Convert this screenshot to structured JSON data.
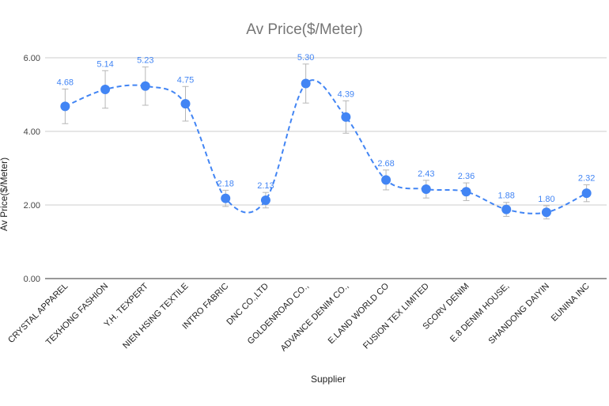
{
  "chart_data": {
    "type": "line",
    "title": "Av Price($/Meter)",
    "xlabel": "Supplier",
    "ylabel": "Av Price($/Meter)",
    "ylim": [
      0,
      6
    ],
    "yticks": [
      "0.00",
      "2.00",
      "4.00",
      "6.00"
    ],
    "grid": true,
    "smooth": true,
    "dashed": true,
    "color": "#4285f4",
    "error_bar_color": "#b7b7b7",
    "categories": [
      "CRYSTAL APPAREL",
      "TEXHONG FASHION",
      "Y.H. TEXPERT",
      "NIEN HSING TEXTILE",
      "INTRO FABRIC",
      "DNC CO.,LTD",
      "GOLDENROAD CO.,",
      "ADVANCE DENIM CO.,",
      "E.LAND WORLD CO",
      "FUSION TEX LIMITED",
      "SCORV DENIM",
      "E.8 DENIM HOUSE,",
      "SHANDONG DAIYIN",
      "EUNINA INC"
    ],
    "values": [
      4.68,
      5.14,
      5.23,
      4.75,
      2.18,
      2.13,
      5.3,
      4.39,
      2.68,
      2.43,
      2.36,
      1.88,
      1.8,
      2.32
    ],
    "data_labels": [
      "4.68",
      "5.14",
      "5.23",
      "4.75",
      "2.18",
      "2.13",
      "5.30",
      "4.39",
      "2.68",
      "2.43",
      "2.36",
      "1.88",
      "1.80",
      "2.32"
    ],
    "error_low": [
      4.21,
      4.63,
      4.71,
      4.28,
      1.96,
      1.92,
      4.77,
      3.95,
      2.41,
      2.19,
      2.12,
      1.69,
      1.62,
      2.09
    ],
    "error_high": [
      5.15,
      5.65,
      5.75,
      5.22,
      2.4,
      2.34,
      5.83,
      4.83,
      2.95,
      2.67,
      2.6,
      2.07,
      1.98,
      2.55
    ]
  }
}
